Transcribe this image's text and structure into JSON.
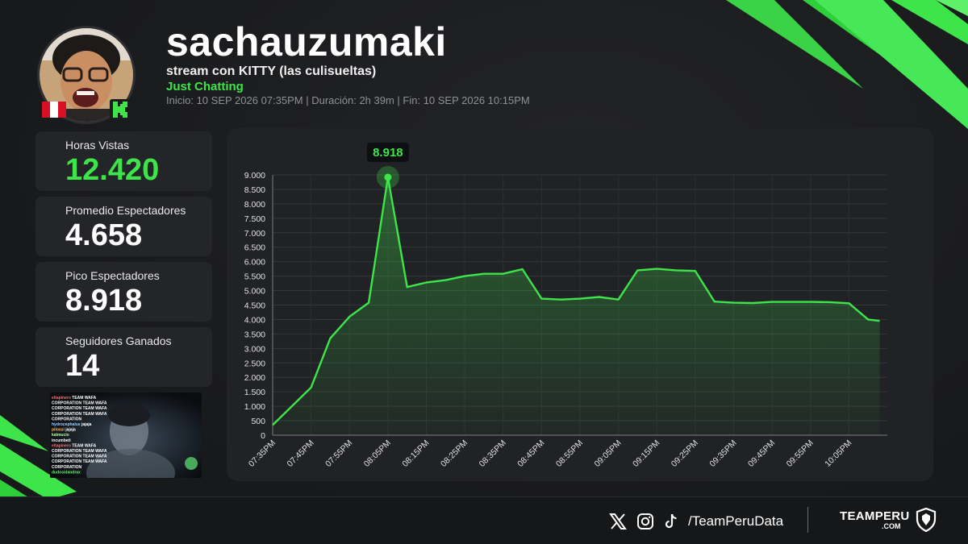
{
  "header": {
    "streamer": "sachauzumaki",
    "stream_title": "stream con KITTY (las culisueltas)",
    "category": "Just Chatting",
    "times": "Inicio: 10 SEP 2026 07:35PM  |  Duración: 2h 39m  |  Fin: 10 SEP 2026 10:15PM"
  },
  "stats": [
    {
      "label": "Horas Vistas",
      "value": "12.420",
      "highlight": true
    },
    {
      "label": "Promedio Espectadores",
      "value": "4.658",
      "highlight": false
    },
    {
      "label": "Pico Espectadores",
      "value": "8.918",
      "highlight": false
    },
    {
      "label": "Seguidores Ganados",
      "value": "14",
      "highlight": false
    }
  ],
  "thumbnail": {
    "chat_lines": [
      {
        "user": "eltapinero",
        "msg": "TEAM WAFA"
      },
      {
        "user": "CORPORATION",
        "msg": "TEAM WAFA"
      },
      {
        "user": "CORPORATION",
        "msg": "TEAM WAFA"
      },
      {
        "user": "CORPORATION",
        "msg": "TEAM WAFA"
      },
      {
        "user": "CORPORATION",
        "msg": ""
      },
      {
        "user": "hydrocephalus",
        "msg": "jajaja"
      },
      {
        "user": "pilossi",
        "msg": "jajaja"
      },
      {
        "user": "kalmucio",
        "msg": ""
      },
      {
        "user": "incumbeti",
        "msg": ""
      },
      {
        "user": "eltapinero",
        "msg": "TEAM WAFA"
      },
      {
        "user": "CORPORATION",
        "msg": "TEAM WAFA"
      },
      {
        "user": "CORPORATION",
        "msg": "TEAM WAFA"
      },
      {
        "user": "CORPORATION",
        "msg": "TEAM WAFA"
      },
      {
        "user": "CORPORATION",
        "msg": ""
      },
      {
        "user": "dudosidandrax",
        "msg": ""
      }
    ]
  },
  "footer": {
    "handle": "/TeamPeruData",
    "brand": "TEAMPERU",
    "brand_sub": ".COM",
    "icons": [
      "x-icon",
      "instagram-icon",
      "tiktok-icon"
    ]
  },
  "colors": {
    "accent": "#3ee54a",
    "background": "#1b1c1e",
    "card": "#242528"
  },
  "chart_data": {
    "type": "area",
    "title": "",
    "xlabel": "",
    "ylabel": "",
    "ylim": [
      0,
      9000
    ],
    "y_ticks": [
      0,
      500,
      1000,
      1500,
      2000,
      2500,
      3000,
      3500,
      4000,
      4500,
      5000,
      5500,
      6000,
      6500,
      7000,
      7500,
      8000,
      8500,
      9000
    ],
    "y_tick_labels": [
      "0",
      "500",
      "1.000",
      "1.500",
      "2.000",
      "2.500",
      "3.000",
      "3.500",
      "4.000",
      "4.500",
      "5.000",
      "5.500",
      "6.000",
      "6.500",
      "7.000",
      "7.500",
      "8.000",
      "8.500",
      "9.000"
    ],
    "x_tick_labels": [
      "07:35PM",
      "07:45PM",
      "07:55PM",
      "08:05PM",
      "08:15PM",
      "08:25PM",
      "08:35PM",
      "08:45PM",
      "08:55PM",
      "09:05PM",
      "09:15PM",
      "09:25PM",
      "09:35PM",
      "09:45PM",
      "09:55PM",
      "10:05PM"
    ],
    "x_range_minutes": [
      0,
      160
    ],
    "series": [
      {
        "minutes": [
          0,
          5,
          10,
          15,
          20,
          25,
          30,
          35,
          40,
          45,
          50,
          55,
          60,
          65,
          70,
          75,
          80,
          85,
          90,
          95,
          100,
          105,
          110,
          115,
          120,
          125,
          130,
          135,
          140,
          145,
          150,
          155,
          158
        ],
        "values": [
          350,
          1000,
          1650,
          3350,
          4100,
          4580,
          8918,
          5120,
          5280,
          5360,
          5500,
          5580,
          5580,
          5740,
          4720,
          4690,
          4720,
          4780,
          4690,
          5700,
          5750,
          5700,
          5680,
          4620,
          4580,
          4570,
          4610,
          4610,
          4610,
          4600,
          4560,
          4000,
          3950
        ]
      }
    ],
    "peak": {
      "minute": 30,
      "value": 8918,
      "label": "8.918"
    },
    "grid": true,
    "legend": "none",
    "line_color": "#3ee54a"
  }
}
